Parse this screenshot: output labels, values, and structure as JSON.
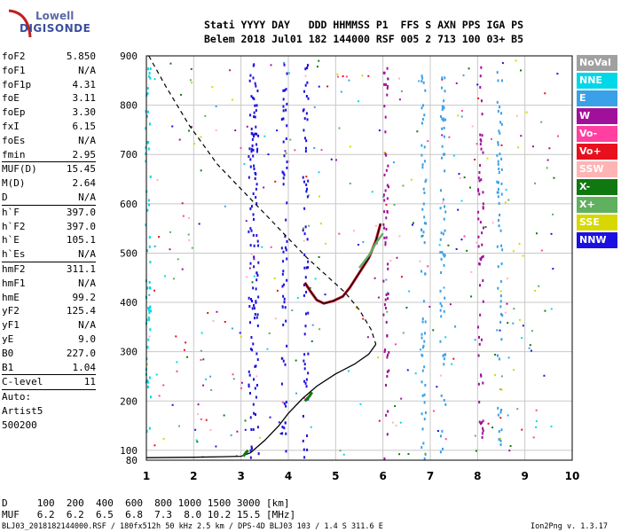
{
  "logo": {
    "line1": "Lowell",
    "line2": "DIGISONDE"
  },
  "header": {
    "line1": "Stati YYYY DAY   DDD HHMMSS P1  FFS S AXN PPS IGA PS",
    "line2": "Belem 2018 Jul01 182 144000 RSF 005 2 713 100 03+ B5"
  },
  "params": [
    {
      "k": "foF2",
      "v": "5.850"
    },
    {
      "k": "foF1",
      "v": "N/A"
    },
    {
      "k": "foF1p",
      "v": "4.31"
    },
    {
      "k": "foE",
      "v": "3.11"
    },
    {
      "k": "foEp",
      "v": "3.30"
    },
    {
      "k": "fxI",
      "v": "6.15"
    },
    {
      "k": "foEs",
      "v": "N/A"
    },
    {
      "k": "fmin",
      "v": "2.95"
    },
    {
      "k": "MUF(D)",
      "v": "15.45"
    },
    {
      "k": "M(D)",
      "v": "2.64"
    },
    {
      "k": "D",
      "v": "N/A"
    },
    {
      "k": "h`F",
      "v": "397.0"
    },
    {
      "k": "h`F2",
      "v": "397.0"
    },
    {
      "k": "h`E",
      "v": "105.1"
    },
    {
      "k": "h`Es",
      "v": "N/A"
    },
    {
      "k": "hmF2",
      "v": "311.1"
    },
    {
      "k": "hmF1",
      "v": "N/A"
    },
    {
      "k": "hmE",
      "v": "99.2"
    },
    {
      "k": "yF2",
      "v": "125.4"
    },
    {
      "k": "yF1",
      "v": "N/A"
    },
    {
      "k": "yE",
      "v": "9.0"
    },
    {
      "k": "B0",
      "v": "227.0"
    },
    {
      "k": "B1",
      "v": "1.04"
    },
    {
      "k": "C-level",
      "v": "11"
    },
    {
      "k": "Auto:",
      "v": ""
    },
    {
      "k": "Artist5",
      "v": ""
    },
    {
      "k": "500200",
      "v": ""
    }
  ],
  "legend": [
    {
      "label": "NoVal",
      "color": "#a0a0a0"
    },
    {
      "label": "NNE",
      "color": "#00d8e8"
    },
    {
      "label": "E",
      "color": "#3aa0e8"
    },
    {
      "label": "W",
      "color": "#a0109a"
    },
    {
      "label": "Vo-",
      "color": "#ff40a0"
    },
    {
      "label": "Vo+",
      "color": "#e8101c"
    },
    {
      "label": "SSW",
      "color": "#ffb4b4"
    },
    {
      "label": "X-",
      "color": "#107810"
    },
    {
      "label": "X+",
      "color": "#60b060"
    },
    {
      "label": "SSE",
      "color": "#d8d800"
    },
    {
      "label": "NNW",
      "color": "#1c10e0"
    }
  ],
  "bottom": {
    "d_row": "D     100  200  400  600  800 1000 1500 3000 [km]",
    "muf_row": "MUF   6.2  6.2  6.5  6.8  7.3  8.0 10.2 15.5 [MHz]",
    "footer_left": "BLJ03_2018182144000.RSF / 180fx512h 50 kHz 2.5 km / DPS-4D BLJ03 103 / 1.4 S 311.6 E",
    "footer_right": "Ion2Png v. 1.3.17"
  },
  "chart_data": {
    "type": "scatter",
    "xlim": [
      1,
      10
    ],
    "ylim": [
      80,
      900
    ],
    "xticks": [
      1,
      2,
      3,
      4,
      5,
      6,
      7,
      8,
      9,
      10
    ],
    "yticks": [
      100,
      200,
      300,
      400,
      500,
      600,
      700,
      800,
      900
    ],
    "ytick_labels": [
      "100",
      "200",
      "300",
      "400",
      "500",
      "600",
      "700",
      "800",
      "900"
    ],
    "ytick_label_80": "80",
    "profile_line": [
      [
        1.0,
        85
      ],
      [
        2.0,
        86
      ],
      [
        2.6,
        87
      ],
      [
        3.0,
        88
      ],
      [
        3.2,
        95
      ],
      [
        3.5,
        120
      ],
      [
        3.8,
        150
      ],
      [
        4.0,
        175
      ],
      [
        4.3,
        205
      ],
      [
        4.6,
        230
      ],
      [
        5.0,
        255
      ],
      [
        5.4,
        275
      ],
      [
        5.7,
        295
      ],
      [
        5.85,
        315
      ]
    ],
    "profile_dashed": [
      [
        1.05,
        900
      ],
      [
        1.4,
        840
      ],
      [
        1.9,
        760
      ],
      [
        2.5,
        680
      ],
      [
        3.1,
        620
      ],
      [
        3.6,
        570
      ],
      [
        4.0,
        530
      ],
      [
        4.4,
        490
      ],
      [
        4.8,
        455
      ],
      [
        5.2,
        420
      ],
      [
        5.5,
        385
      ],
      [
        5.75,
        345
      ],
      [
        5.85,
        315
      ]
    ],
    "trace_F2": [
      [
        4.35,
        440
      ],
      [
        4.45,
        425
      ],
      [
        4.6,
        405
      ],
      [
        4.75,
        398
      ],
      [
        4.95,
        403
      ],
      [
        5.15,
        412
      ],
      [
        5.3,
        430
      ],
      [
        5.5,
        460
      ],
      [
        5.7,
        490
      ],
      [
        5.85,
        525
      ],
      [
        5.95,
        560
      ]
    ],
    "trace_X": [
      [
        5.5,
        470
      ],
      [
        5.7,
        495
      ],
      [
        5.85,
        520
      ],
      [
        6.0,
        540
      ]
    ],
    "trace_E": [
      [
        3.05,
        88
      ],
      [
        3.1,
        95
      ],
      [
        3.15,
        100
      ]
    ],
    "trace_Es": [
      [
        4.35,
        200
      ],
      [
        4.45,
        210
      ],
      [
        4.5,
        218
      ]
    ]
  }
}
